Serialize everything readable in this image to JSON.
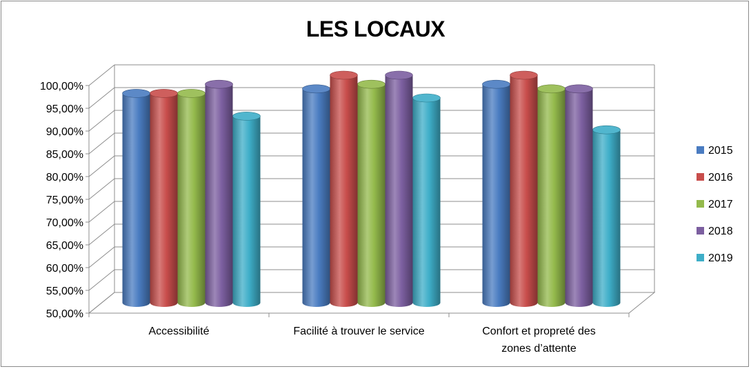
{
  "chart_data": {
    "type": "bar",
    "title": "LES LOCAUX",
    "categories": [
      [
        "Accessibilité"
      ],
      [
        "Facilité à trouver le service"
      ],
      [
        "Confort et propreté des",
        "zones d’attente"
      ]
    ],
    "series": [
      {
        "name": "2015",
        "color": "#4a7cc1",
        "values": [
          96,
          97,
          98
        ]
      },
      {
        "name": "2016",
        "color": "#c84d4b",
        "values": [
          96,
          100,
          100
        ]
      },
      {
        "name": "2017",
        "color": "#94ba4c",
        "values": [
          96,
          98,
          97
        ]
      },
      {
        "name": "2018",
        "color": "#7c5fa0",
        "values": [
          98,
          100,
          97
        ]
      },
      {
        "name": "2019",
        "color": "#3eaec8",
        "values": [
          91,
          95,
          88
        ]
      }
    ],
    "ylim": [
      50,
      100
    ],
    "yticks": [
      "50,00%",
      "55,00%",
      "60,00%",
      "65,00%",
      "70,00%",
      "75,00%",
      "80,00%",
      "85,00%",
      "90,00%",
      "95,00%",
      "100,00%"
    ],
    "grid": true,
    "legend_position": "right",
    "style": "3d-cylinder"
  }
}
